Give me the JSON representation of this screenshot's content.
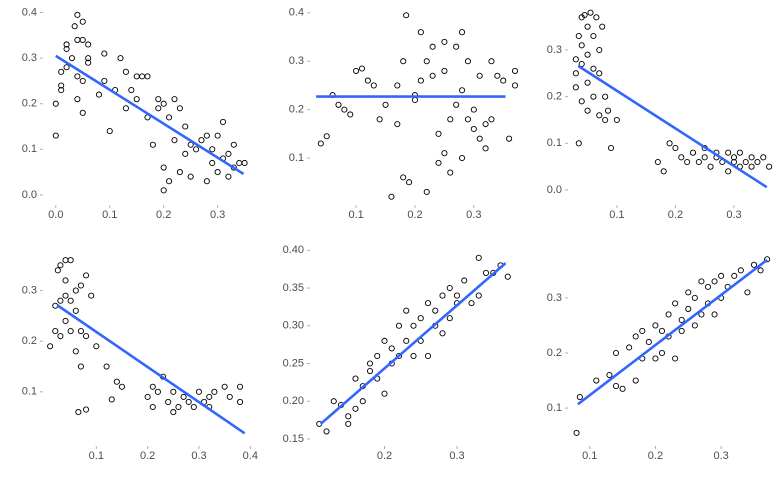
{
  "chart_data": [
    {
      "type": "scatter",
      "x": [
        0.0,
        0.0,
        0.01,
        0.01,
        0.01,
        0.02,
        0.02,
        0.02,
        0.03,
        0.035,
        0.04,
        0.04,
        0.04,
        0.04,
        0.05,
        0.05,
        0.05,
        0.05,
        0.06,
        0.06,
        0.06,
        0.08,
        0.09,
        0.09,
        0.1,
        0.11,
        0.12,
        0.13,
        0.13,
        0.14,
        0.15,
        0.15,
        0.16,
        0.17,
        0.17,
        0.18,
        0.19,
        0.19,
        0.2,
        0.2,
        0.2,
        0.21,
        0.21,
        0.22,
        0.22,
        0.23,
        0.23,
        0.24,
        0.24,
        0.25,
        0.25,
        0.26,
        0.27,
        0.28,
        0.28,
        0.29,
        0.29,
        0.3,
        0.3,
        0.31,
        0.31,
        0.32,
        0.32,
        0.33,
        0.33,
        0.34,
        0.35
      ],
      "values": [
        0.13,
        0.2,
        0.23,
        0.24,
        0.27,
        0.32,
        0.33,
        0.28,
        0.3,
        0.37,
        0.395,
        0.34,
        0.26,
        0.21,
        0.38,
        0.34,
        0.25,
        0.18,
        0.33,
        0.3,
        0.29,
        0.22,
        0.31,
        0.25,
        0.14,
        0.23,
        0.3,
        0.27,
        0.19,
        0.23,
        0.26,
        0.21,
        0.26,
        0.17,
        0.26,
        0.11,
        0.21,
        0.19,
        0.2,
        0.06,
        0.01,
        0.03,
        0.17,
        0.21,
        0.12,
        0.05,
        0.19,
        0.09,
        0.15,
        0.04,
        0.11,
        0.1,
        0.12,
        0.03,
        0.13,
        0.07,
        0.1,
        0.13,
        0.05,
        0.08,
        0.16,
        0.09,
        0.04,
        0.11,
        0.06,
        0.07,
        0.07
      ],
      "xlim": [
        -0.02,
        0.36
      ],
      "ylim": [
        -0.02,
        0.41
      ],
      "xticks": [
        {
          "value": 0,
          "label": "0.0"
        },
        0.1,
        0.2,
        0.3
      ],
      "yticks": [
        {
          "value": 0,
          "label": "0.0"
        },
        0.1,
        0.2,
        0.3,
        0.4
      ],
      "marker_color": "#000000",
      "fit": {
        "x": [
          0.0,
          0.348
        ],
        "y": [
          0.305,
          0.046
        ],
        "color": "#3366ff"
      }
    },
    {
      "type": "scatter",
      "x": [
        0.04,
        0.05,
        0.06,
        0.07,
        0.08,
        0.09,
        0.1,
        0.11,
        0.12,
        0.13,
        0.14,
        0.15,
        0.16,
        0.17,
        0.17,
        0.18,
        0.18,
        0.185,
        0.19,
        0.2,
        0.2,
        0.21,
        0.21,
        0.22,
        0.22,
        0.23,
        0.23,
        0.24,
        0.24,
        0.25,
        0.25,
        0.25,
        0.26,
        0.26,
        0.27,
        0.27,
        0.28,
        0.28,
        0.28,
        0.29,
        0.29,
        0.3,
        0.3,
        0.31,
        0.31,
        0.32,
        0.32,
        0.33,
        0.33,
        0.34,
        0.35,
        0.36,
        0.37,
        0.37
      ],
      "values": [
        0.13,
        0.145,
        0.23,
        0.21,
        0.2,
        0.19,
        0.28,
        0.285,
        0.26,
        0.25,
        0.18,
        0.21,
        0.02,
        0.17,
        0.25,
        0.06,
        0.3,
        0.395,
        0.05,
        0.22,
        0.23,
        0.26,
        0.36,
        0.03,
        0.3,
        0.27,
        0.33,
        0.15,
        0.09,
        0.11,
        0.34,
        0.28,
        0.07,
        0.18,
        0.21,
        0.33,
        0.1,
        0.36,
        0.24,
        0.18,
        0.3,
        0.16,
        0.2,
        0.14,
        0.27,
        0.12,
        0.17,
        0.3,
        0.18,
        0.27,
        0.26,
        0.14,
        0.25,
        0.28
      ],
      "xlim": [
        0.025,
        0.37
      ],
      "ylim": [
        0.005,
        0.41
      ],
      "xticks": [
        0.1,
        0.2,
        0.3
      ],
      "yticks": [
        0.1,
        0.2,
        0.3,
        0.4
      ],
      "marker_color": "#000000",
      "fit": {
        "x": [
          0.032,
          0.354
        ],
        "y": [
          0.227,
          0.227
        ],
        "color": "#3366ff"
      }
    },
    {
      "type": "scatter",
      "x": [
        0.03,
        0.03,
        0.03,
        0.035,
        0.035,
        0.04,
        0.04,
        0.04,
        0.04,
        0.045,
        0.05,
        0.05,
        0.05,
        0.05,
        0.055,
        0.06,
        0.06,
        0.06,
        0.065,
        0.07,
        0.07,
        0.07,
        0.075,
        0.08,
        0.08,
        0.085,
        0.09,
        0.1,
        0.17,
        0.18,
        0.19,
        0.2,
        0.21,
        0.22,
        0.23,
        0.24,
        0.25,
        0.25,
        0.26,
        0.27,
        0.27,
        0.28,
        0.29,
        0.29,
        0.3,
        0.3,
        0.31,
        0.31,
        0.32,
        0.33,
        0.33,
        0.34,
        0.35,
        0.36
      ],
      "values": [
        0.25,
        0.22,
        0.28,
        0.33,
        0.1,
        0.37,
        0.31,
        0.27,
        0.19,
        0.375,
        0.35,
        0.29,
        0.23,
        0.17,
        0.38,
        0.33,
        0.26,
        0.2,
        0.37,
        0.3,
        0.25,
        0.16,
        0.35,
        0.2,
        0.15,
        0.17,
        0.09,
        0.15,
        0.06,
        0.04,
        0.1,
        0.09,
        0.07,
        0.06,
        0.08,
        0.06,
        0.07,
        0.09,
        0.05,
        0.07,
        0.08,
        0.06,
        0.04,
        0.08,
        0.06,
        0.07,
        0.05,
        0.08,
        0.06,
        0.07,
        0.05,
        0.06,
        0.07,
        0.05
      ],
      "xlim": [
        0.02,
        0.37
      ],
      "ylim": [
        -0.03,
        0.39
      ],
      "xticks": [
        0.1,
        0.2,
        0.3
      ],
      "yticks": [
        {
          "value": 0,
          "label": "0.0"
        },
        0.1,
        0.2,
        0.3
      ],
      "marker_color": "#000000",
      "fit": {
        "x": [
          0.034,
          0.356
        ],
        "y": [
          0.266,
          0.006
        ],
        "color": "#3366ff"
      }
    },
    {
      "type": "scatter",
      "x": [
        0.01,
        0.02,
        0.02,
        0.025,
        0.03,
        0.03,
        0.03,
        0.04,
        0.04,
        0.04,
        0.04,
        0.05,
        0.05,
        0.05,
        0.06,
        0.06,
        0.06,
        0.065,
        0.07,
        0.07,
        0.07,
        0.08,
        0.08,
        0.08,
        0.09,
        0.1,
        0.12,
        0.13,
        0.14,
        0.15,
        0.2,
        0.21,
        0.21,
        0.22,
        0.23,
        0.24,
        0.25,
        0.25,
        0.26,
        0.27,
        0.28,
        0.29,
        0.3,
        0.31,
        0.32,
        0.32,
        0.33,
        0.35,
        0.36,
        0.38,
        0.38
      ],
      "values": [
        0.19,
        0.27,
        0.22,
        0.34,
        0.35,
        0.28,
        0.21,
        0.36,
        0.32,
        0.29,
        0.24,
        0.36,
        0.28,
        0.22,
        0.3,
        0.26,
        0.18,
        0.06,
        0.31,
        0.22,
        0.15,
        0.33,
        0.21,
        0.065,
        0.29,
        0.19,
        0.15,
        0.085,
        0.12,
        0.11,
        0.09,
        0.07,
        0.11,
        0.1,
        0.13,
        0.08,
        0.06,
        0.1,
        0.07,
        0.09,
        0.08,
        0.07,
        0.1,
        0.08,
        0.09,
        0.07,
        0.1,
        0.11,
        0.09,
        0.11,
        0.08
      ],
      "xlim": [
        0.0,
        0.415
      ],
      "ylim": [
        -0.005,
        0.39
      ],
      "xticks": [
        0.1,
        0.2,
        0.3,
        0.4
      ],
      "yticks": [
        0.1,
        0.2,
        0.3
      ],
      "marker_color": "#000000",
      "fit": {
        "x": [
          0.024,
          0.389
        ],
        "y": [
          0.271,
          0.018
        ],
        "color": "#3366ff"
      }
    },
    {
      "type": "scatter",
      "x": [
        0.11,
        0.12,
        0.13,
        0.14,
        0.15,
        0.15,
        0.16,
        0.16,
        0.17,
        0.17,
        0.18,
        0.18,
        0.19,
        0.19,
        0.2,
        0.2,
        0.21,
        0.21,
        0.22,
        0.22,
        0.23,
        0.23,
        0.24,
        0.24,
        0.25,
        0.25,
        0.26,
        0.26,
        0.27,
        0.27,
        0.28,
        0.28,
        0.29,
        0.29,
        0.3,
        0.3,
        0.31,
        0.32,
        0.33,
        0.33,
        0.34,
        0.35,
        0.36,
        0.37
      ],
      "values": [
        0.17,
        0.16,
        0.2,
        0.195,
        0.18,
        0.17,
        0.19,
        0.23,
        0.22,
        0.2,
        0.24,
        0.25,
        0.23,
        0.26,
        0.21,
        0.28,
        0.27,
        0.25,
        0.3,
        0.26,
        0.28,
        0.32,
        0.26,
        0.3,
        0.31,
        0.28,
        0.33,
        0.26,
        0.3,
        0.32,
        0.34,
        0.29,
        0.31,
        0.35,
        0.33,
        0.34,
        0.36,
        0.33,
        0.39,
        0.34,
        0.37,
        0.37,
        0.38,
        0.365
      ],
      "xlim": [
        0.1,
        0.38
      ],
      "ylim": [
        0.142,
        0.407
      ],
      "xticks": [
        0.2,
        0.3
      ],
      "yticks": [
        0.15,
        {
          "value": 0.2,
          "label": "0.20"
        },
        0.25,
        {
          "value": 0.3,
          "label": "0.30"
        },
        0.35,
        {
          "value": 0.4,
          "label": "0.40"
        }
      ],
      "marker_color": "#000000",
      "fit": {
        "x": [
          0.112,
          0.367
        ],
        "y": [
          0.17,
          0.383
        ],
        "color": "#3366ff"
      }
    },
    {
      "type": "scatter",
      "x": [
        0.08,
        0.085,
        0.11,
        0.13,
        0.14,
        0.14,
        0.15,
        0.16,
        0.17,
        0.17,
        0.18,
        0.18,
        0.19,
        0.2,
        0.2,
        0.21,
        0.21,
        0.22,
        0.22,
        0.23,
        0.23,
        0.24,
        0.24,
        0.25,
        0.25,
        0.26,
        0.26,
        0.27,
        0.27,
        0.28,
        0.28,
        0.29,
        0.29,
        0.3,
        0.3,
        0.31,
        0.32,
        0.33,
        0.34,
        0.35,
        0.36,
        0.37
      ],
      "values": [
        0.055,
        0.12,
        0.15,
        0.16,
        0.14,
        0.2,
        0.135,
        0.21,
        0.15,
        0.23,
        0.19,
        0.24,
        0.22,
        0.19,
        0.25,
        0.24,
        0.2,
        0.27,
        0.23,
        0.29,
        0.19,
        0.26,
        0.24,
        0.31,
        0.28,
        0.3,
        0.25,
        0.27,
        0.33,
        0.29,
        0.32,
        0.33,
        0.27,
        0.3,
        0.34,
        0.32,
        0.34,
        0.35,
        0.31,
        0.36,
        0.35,
        0.37
      ],
      "xlim": [
        0.07,
        0.382
      ],
      "ylim": [
        0.033,
        0.396
      ],
      "xticks": [
        0.1,
        0.2,
        0.3
      ],
      "yticks": [
        0.1,
        0.2,
        0.3
      ],
      "marker_color": "#000000",
      "fit": {
        "x": [
          0.082,
          0.37
        ],
        "y": [
          0.107,
          0.369
        ],
        "color": "#3366ff"
      }
    }
  ]
}
